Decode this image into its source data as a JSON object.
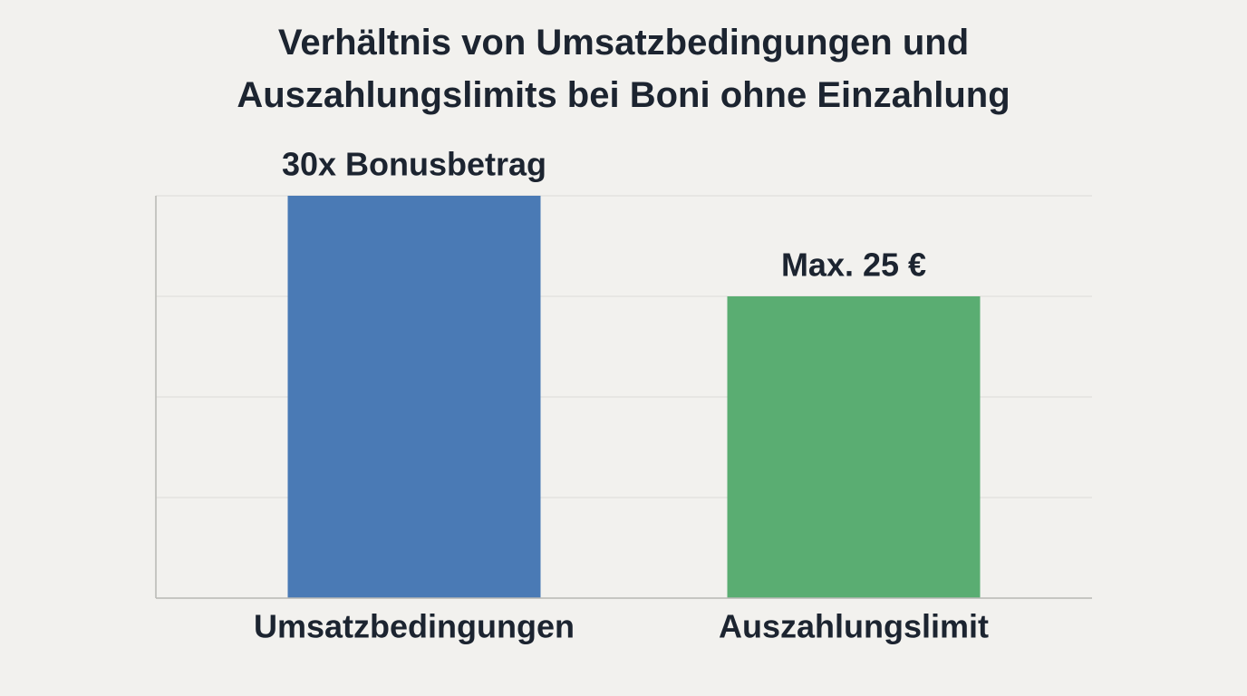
{
  "chart_data": {
    "type": "bar",
    "title": "Verhältnis von Umsatzbedingungen und Auszahlungslimits bei Boni ohne Einzahlung",
    "categories": [
      "Umsatzbedingungen",
      "Auszahlungslimit"
    ],
    "values": [
      30,
      25
    ],
    "value_labels": [
      "30x Bonusbetrag",
      "Max. 25 €"
    ],
    "colors": [
      "#4a7ab5",
      "#5aad72"
    ],
    "ylim": [
      10,
      30
    ],
    "yticks": [
      10,
      15,
      20,
      25,
      30
    ],
    "grid": true
  }
}
